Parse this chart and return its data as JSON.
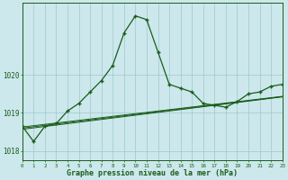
{
  "xlabel": "Graphe pression niveau de la mer (hPa)",
  "bg_color": "#cce8ec",
  "grid_color": "#9fc8cc",
  "line_color": "#1a5c1a",
  "hours": [
    0,
    1,
    2,
    3,
    4,
    5,
    6,
    7,
    8,
    9,
    10,
    11,
    12,
    13,
    14,
    15,
    16,
    17,
    18,
    19,
    20,
    21,
    22,
    23
  ],
  "main_line": [
    1018.65,
    1018.25,
    1018.65,
    1018.72,
    1019.05,
    1019.25,
    1019.55,
    1019.85,
    1020.25,
    1021.1,
    1021.55,
    1021.45,
    1020.6,
    1019.75,
    1019.65,
    1019.55,
    1019.25,
    1019.2,
    1019.15,
    1019.3,
    1019.5,
    1019.55,
    1019.7,
    1019.75
  ],
  "trend1": [
    1018.63,
    1018.665,
    1018.7,
    1018.735,
    1018.77,
    1018.805,
    1018.84,
    1018.875,
    1018.91,
    1018.945,
    1018.98,
    1019.015,
    1019.05,
    1019.085,
    1019.12,
    1019.155,
    1019.19,
    1019.225,
    1019.26,
    1019.295,
    1019.33,
    1019.365,
    1019.4,
    1019.435
  ],
  "trend2": [
    1018.6,
    1018.636,
    1018.672,
    1018.708,
    1018.744,
    1018.78,
    1018.816,
    1018.852,
    1018.888,
    1018.924,
    1018.96,
    1018.996,
    1019.032,
    1019.068,
    1019.104,
    1019.14,
    1019.176,
    1019.212,
    1019.248,
    1019.284,
    1019.32,
    1019.356,
    1019.392,
    1019.428
  ],
  "trend3": [
    1018.57,
    1018.607,
    1018.644,
    1018.681,
    1018.718,
    1018.755,
    1018.792,
    1018.829,
    1018.866,
    1018.903,
    1018.94,
    1018.977,
    1019.014,
    1019.051,
    1019.088,
    1019.125,
    1019.162,
    1019.199,
    1019.236,
    1019.273,
    1019.31,
    1019.347,
    1019.384,
    1019.421
  ],
  "ylim": [
    1017.75,
    1021.9
  ],
  "yticks": [
    1018,
    1019,
    1020
  ],
  "figsize": [
    3.2,
    2.0
  ],
  "dpi": 100
}
